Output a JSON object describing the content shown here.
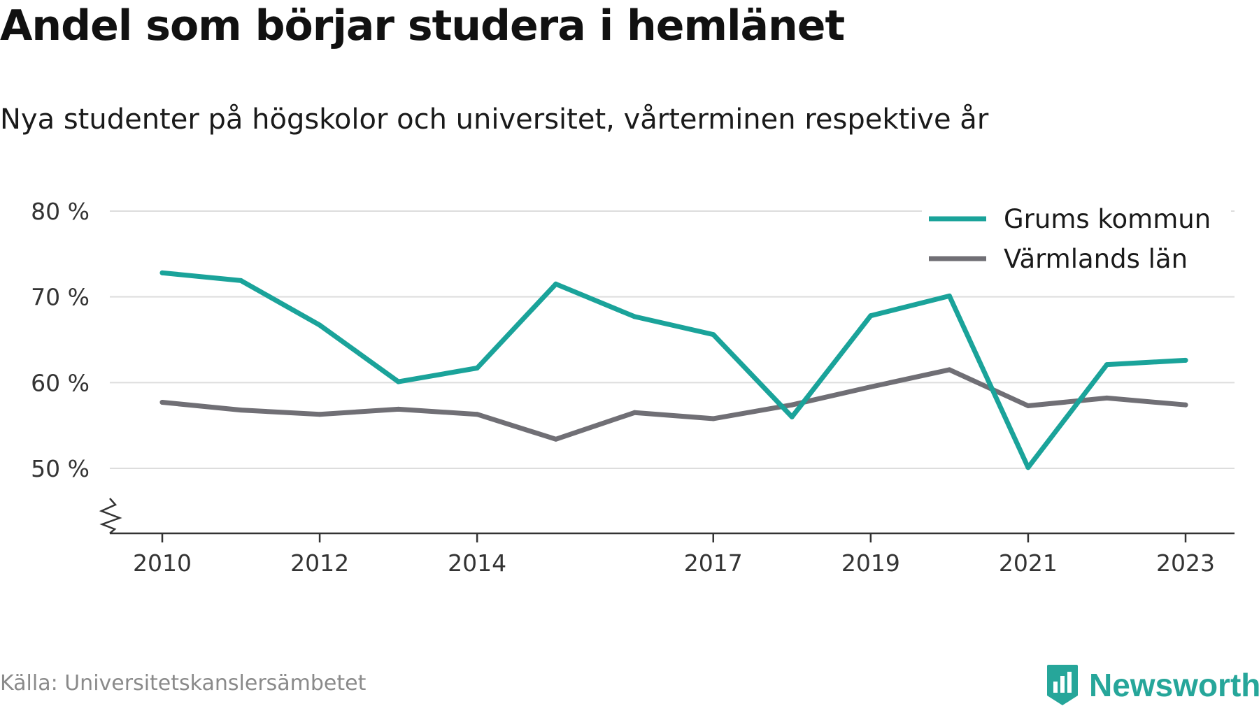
{
  "title": "Andel som börjar studera i hemlänet",
  "subtitle": "Nya studenter på högskolor och universitet, vårterminen respektive år",
  "source": "Källa: Universitetskanslersämbetet",
  "brand": {
    "name": "Newsworthy",
    "icon": "newsworthy-logo-icon",
    "color": "#26a69a"
  },
  "colors": {
    "grid": "#dddddd",
    "axis": "#333333",
    "text": "#333333"
  },
  "chart_data": {
    "type": "line",
    "x": [
      2010,
      2011,
      2012,
      2013,
      2014,
      2015,
      2016,
      2017,
      2018,
      2019,
      2020,
      2021,
      2022,
      2023
    ],
    "x_ticks": [
      2010,
      2012,
      2014,
      2017,
      2019,
      2021,
      2023
    ],
    "y_ticks": [
      50,
      60,
      70,
      80
    ],
    "y_tick_suffix": " %",
    "ylim": [
      42.5,
      81
    ],
    "y_axis_break": true,
    "grid": true,
    "legend_position": "top-right",
    "series": [
      {
        "name": "Grums kommun",
        "color": "#1aa39a",
        "values": [
          72.8,
          71.9,
          66.7,
          60.1,
          61.7,
          71.5,
          67.7,
          65.6,
          56.0,
          67.8,
          70.1,
          50.1,
          62.1,
          62.6
        ]
      },
      {
        "name": "Värmlands län",
        "color": "#706f75",
        "values": [
          57.7,
          56.8,
          56.3,
          56.9,
          56.3,
          53.4,
          56.5,
          55.8,
          57.4,
          59.5,
          61.5,
          57.3,
          58.2,
          57.4
        ]
      }
    ]
  }
}
